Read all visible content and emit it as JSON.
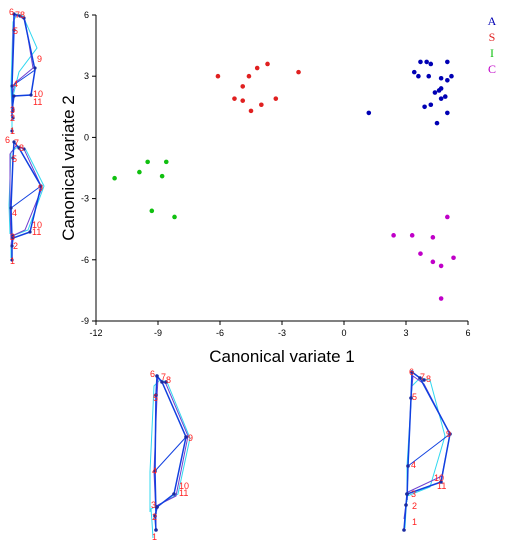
{
  "chart_data": {
    "type": "scatter",
    "title": "",
    "xlabel": "Canonical variate 1",
    "ylabel": "Canonical variate 2",
    "xlim": [
      -12,
      6
    ],
    "ylim": [
      -9,
      6
    ],
    "x_ticks": [
      -12,
      -9,
      -6,
      -3,
      0,
      3,
      6
    ],
    "y_ticks": [
      -9,
      -6,
      -3,
      0,
      3,
      6
    ],
    "grid": false,
    "legend_position": "top-right",
    "series": [
      {
        "name": "A",
        "color": "#0000b4",
        "points": [
          [
            1.2,
            1.2
          ],
          [
            3.4,
            3.2
          ],
          [
            3.7,
            3.7
          ],
          [
            4.0,
            3.7
          ],
          [
            4.2,
            3.6
          ],
          [
            3.6,
            3.0
          ],
          [
            4.1,
            3.0
          ],
          [
            4.7,
            2.9
          ],
          [
            5.0,
            3.7
          ],
          [
            5.2,
            3.0
          ],
          [
            5.0,
            2.8
          ],
          [
            4.4,
            2.2
          ],
          [
            4.6,
            2.3
          ],
          [
            4.7,
            2.4
          ],
          [
            4.2,
            1.6
          ],
          [
            3.9,
            1.5
          ],
          [
            4.7,
            1.9
          ],
          [
            4.5,
            0.7
          ],
          [
            5.0,
            1.2
          ],
          [
            4.9,
            2.0
          ]
        ]
      },
      {
        "name": "S",
        "color": "#e02020",
        "points": [
          [
            -6.1,
            3.0
          ],
          [
            -4.6,
            3.0
          ],
          [
            -3.7,
            3.6
          ],
          [
            -2.2,
            3.2
          ],
          [
            -4.2,
            3.4
          ],
          [
            -4.9,
            2.5
          ],
          [
            -5.3,
            1.9
          ],
          [
            -4.9,
            1.8
          ],
          [
            -3.3,
            1.9
          ],
          [
            -4.0,
            1.6
          ],
          [
            -4.5,
            1.3
          ]
        ]
      },
      {
        "name": "I",
        "color": "#10c010",
        "points": [
          [
            -11.1,
            -2.0
          ],
          [
            -9.9,
            -1.7
          ],
          [
            -9.5,
            -1.2
          ],
          [
            -8.8,
            -1.9
          ],
          [
            -8.6,
            -1.2
          ],
          [
            -9.3,
            -3.6
          ],
          [
            -8.2,
            -3.9
          ]
        ]
      },
      {
        "name": "C",
        "color": "#c000c8",
        "points": [
          [
            2.4,
            -4.8
          ],
          [
            3.3,
            -4.8
          ],
          [
            4.3,
            -4.9
          ],
          [
            5.0,
            -3.9
          ],
          [
            3.7,
            -5.7
          ],
          [
            4.3,
            -6.1
          ],
          [
            4.7,
            -6.3
          ],
          [
            5.3,
            -5.9
          ],
          [
            4.7,
            -7.9
          ]
        ]
      }
    ]
  },
  "shape_diagrams": {
    "landmark_labels": [
      "1",
      "2",
      "3",
      "4",
      "5",
      "6",
      "7",
      "8",
      "9",
      "10",
      "11"
    ]
  }
}
